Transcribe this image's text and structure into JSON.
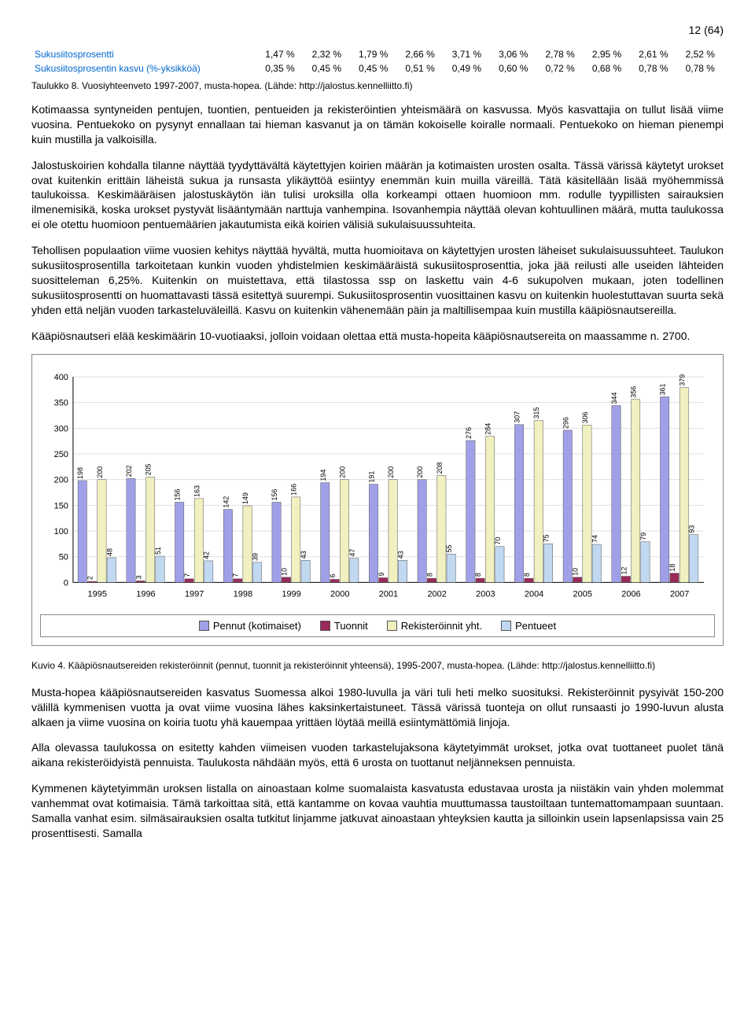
{
  "page_marker": "12 (64)",
  "table": {
    "rows": [
      {
        "label": "Sukusiitosprosentti",
        "values": [
          "1,47 %",
          "2,32 %",
          "1,79 %",
          "2,66 %",
          "3,71 %",
          "3,06 %",
          "2,78 %",
          "2,95 %",
          "2,61 %",
          "2,52 %"
        ]
      },
      {
        "label": "Sukusiitosprosentin kasvu (%-yksikköä)",
        "values": [
          "0,35 %",
          "0,45 %",
          "0,45 %",
          "0,51 %",
          "0,49 %",
          "0,60 %",
          "0,72 %",
          "0,68 %",
          "0,78 %",
          "0,78 %"
        ]
      }
    ],
    "caption": "Taulukko 8. Vuosiyhteenveto 1997-2007, musta-hopea. (Lähde: http://jalostus.kennelliitto.fi)"
  },
  "para1": "Kotimaassa syntyneiden pentujen, tuontien, pentueiden ja rekisteröintien yhteismäärä on kasvussa. Myös kasvattajia on tullut lisää viime vuosina. Pentuekoko on pysynyt ennallaan tai hieman kasvanut ja on tämän kokoiselle koiralle normaali. Pentuekoko on hieman pienempi kuin mustilla ja valkoisilla.",
  "para2": "Jalostuskoirien kohdalla tilanne näyttää tyydyttävältä käytettyjen koirien määrän ja kotimaisten urosten osalta. Tässä värissä käytetyt urokset ovat kuitenkin erittäin läheistä sukua ja runsasta ylikäyttöä esiintyy enemmän kuin muilla väreillä. Tätä käsitellään lisää myöhemmissä taulukoissa. Keskimääräisen jalostuskäytön iän tulisi uroksilla olla korkeampi ottaen huomioon mm. rodulle tyypillisten sairauksien ilmenemisikä, koska urokset pystyvät lisääntymään narttuja vanhempina. Isovanhempia näyttää olevan kohtuullinen määrä, mutta taulukossa ei ole otettu huomioon pentuemäärien jakautumista eikä koirien välisiä sukulaisuussuhteita.",
  "para3": "Tehollisen populaation viime vuosien kehitys näyttää hyvältä, mutta huomioitava on käytettyjen urosten läheiset sukulaisuussuhteet. Taulukon sukusiitosprosentilla tarkoitetaan kunkin vuoden yhdistelmien keskimääräistä sukusiitosprosenttia, joka jää reilusti alle useiden lähteiden suositteleman 6,25%. Kuitenkin on muistettava, että tilastossa ssp on laskettu vain 4-6 sukupolven mukaan, joten todellinen sukusiitosprosentti on huomattavasti tässä esitettyä suurempi. Sukusiitosprosentin vuosittainen kasvu on kuitenkin huolestuttavan suurta sekä yhden että neljän vuoden tarkasteluväleillä. Kasvu on kuitenkin vähenemään päin ja maltillisempaa kuin mustilla kääpiösnautsereilla.",
  "para4": "Kääpiösnautseri elää keskimäärin 10-vuotiaaksi, jolloin voidaan olettaa että musta-hopeita kääpiösnautsereita on maassamme n. 2700.",
  "chart": {
    "categories": [
      "1995",
      "1996",
      "1997",
      "1998",
      "1999",
      "2000",
      "2001",
      "2002",
      "2003",
      "2004",
      "2005",
      "2006",
      "2007"
    ],
    "series": [
      {
        "key": "pennut",
        "label": "Pennut (kotimaiset)",
        "color": "#a0a0e8",
        "values": [
          198,
          202,
          156,
          142,
          156,
          194,
          191,
          200,
          276,
          307,
          296,
          344,
          361
        ]
      },
      {
        "key": "tuonnit",
        "label": "Tuonnit",
        "color": "#9a2a5a",
        "values": [
          2,
          3,
          7,
          7,
          10,
          6,
          9,
          8,
          8,
          8,
          10,
          12,
          18
        ]
      },
      {
        "key": "rek",
        "label": "Rekisteröinnit yht.",
        "color": "#f0f0c0",
        "values": [
          200,
          205,
          163,
          149,
          166,
          200,
          200,
          208,
          284,
          315,
          306,
          356,
          379
        ]
      },
      {
        "key": "pentueet",
        "label": "Pentueet",
        "color": "#c0d8f0",
        "values": [
          48,
          51,
          42,
          39,
          43,
          47,
          43,
          55,
          70,
          75,
          74,
          79,
          93
        ]
      }
    ],
    "y_max": 400,
    "y_step": 50,
    "grid_color": "#e0e0e0",
    "axis_color": "#000000",
    "bg_color": "#ffffff",
    "label_fontsize": 11,
    "bar_label_fontsize": 9
  },
  "caption2": "Kuvio 4. Kääpiösnautsereiden rekisteröinnit (pennut, tuonnit ja rekisteröinnit yhteensä), 1995-2007, musta-hopea. (Lähde: http://jalostus.kennelliitto.fi)",
  "para5": "Musta-hopea kääpiösnautsereiden kasvatus Suomessa alkoi 1980-luvulla ja väri tuli heti melko suosituksi. Rekisteröinnit pysyivät 150-200 välillä kymmenisen vuotta ja ovat viime vuosina lähes kaksinkertaistuneet. Tässä värissä tuonteja on ollut runsaasti jo 1990-luvun alusta alkaen ja viime vuosina on koiria tuotu yhä kauempaa yrittäen löytää meillä esiintymättömiä linjoja.",
  "para6": "Alla olevassa taulukossa on esitetty kahden viimeisen vuoden tarkastelujaksona käytetyimmät urokset, jotka ovat tuottaneet puolet tänä aikana rekisteröidyistä pennuista. Taulukosta nähdään myös, että 6 urosta on tuottanut neljänneksen pennuista.",
  "para7": "Kymmenen käytetyimmän uroksen listalla on ainoastaan kolme suomalaista kasvatusta edustavaa urosta ja niistäkin vain yhden molemmat vanhemmat ovat kotimaisia. Tämä tarkoittaa sitä, että kantamme on kovaa vauhtia muuttumassa taustoiltaan tuntemattomampaan suuntaan. Samalla vanhat esim. silmäsairauksien osalta tutkitut linjamme jatkuvat ainoastaan yhteyksien kautta ja silloinkin usein lapsenlapsissa vain 25 prosenttisesti. Samalla"
}
